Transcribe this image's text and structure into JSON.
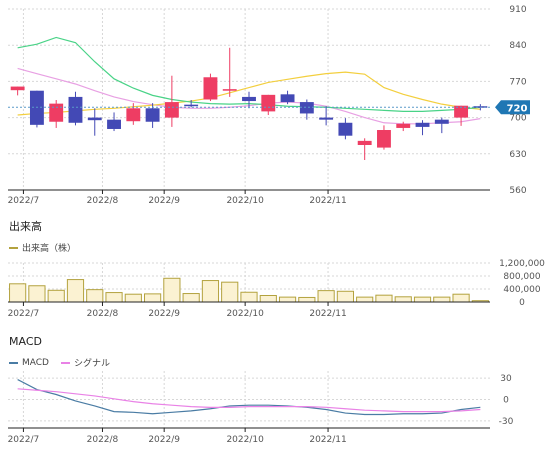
{
  "colors": {
    "up": "#ee3d63",
    "down": "#4349b5",
    "ma_short": "#e8a0e3",
    "ma_mid": "#f3cf3e",
    "ma_long": "#49d387",
    "ma_long_alt": "#26c283",
    "volume_fill": "#fbf2d2",
    "volume_stroke": "#b3a23e",
    "macd": "#4a7ca4",
    "signal": "#e982e6",
    "price_badge": "#1f77b4",
    "grid": "#d7d7d7",
    "axis": "#222222"
  },
  "sections": {
    "volume_title": "出来高",
    "volume_legend": "出来高（株）",
    "macd_title": "MACD",
    "macd_legend": "MACD",
    "signal_legend": "シグナル"
  },
  "chart_data": [
    {
      "type": "candlestick",
      "x_ticks": [
        "2022/7",
        "2022/8",
        "2022/9",
        "2022/10",
        "2022/11"
      ],
      "y_ticks": [
        910,
        840,
        770,
        700,
        630,
        560
      ],
      "ylim": [
        560,
        910
      ],
      "current_price": 720,
      "candles": [
        {
          "o": 753,
          "h": 760,
          "l": 743,
          "c": 760
        },
        {
          "o": 752,
          "h": 752,
          "l": 681,
          "c": 686
        },
        {
          "o": 692,
          "h": 734,
          "l": 680,
          "c": 727
        },
        {
          "o": 740,
          "h": 750,
          "l": 685,
          "c": 690
        },
        {
          "o": 700,
          "h": 718,
          "l": 665,
          "c": 695
        },
        {
          "o": 696,
          "h": 710,
          "l": 674,
          "c": 678
        },
        {
          "o": 693,
          "h": 728,
          "l": 686,
          "c": 718
        },
        {
          "o": 718,
          "h": 728,
          "l": 680,
          "c": 692
        },
        {
          "o": 700,
          "h": 781,
          "l": 682,
          "c": 730
        },
        {
          "o": 725,
          "h": 734,
          "l": 720,
          "c": 723
        },
        {
          "o": 735,
          "h": 785,
          "l": 732,
          "c": 778
        },
        {
          "o": 752,
          "h": 835,
          "l": 740,
          "c": 755
        },
        {
          "o": 740,
          "h": 750,
          "l": 718,
          "c": 732
        },
        {
          "o": 712,
          "h": 744,
          "l": 705,
          "c": 744
        },
        {
          "o": 745,
          "h": 752,
          "l": 726,
          "c": 730
        },
        {
          "o": 730,
          "h": 735,
          "l": 696,
          "c": 708
        },
        {
          "o": 700,
          "h": 722,
          "l": 685,
          "c": 696
        },
        {
          "o": 690,
          "h": 699,
          "l": 658,
          "c": 665
        },
        {
          "o": 647,
          "h": 660,
          "l": 618,
          "c": 655
        },
        {
          "o": 642,
          "h": 685,
          "l": 638,
          "c": 676
        },
        {
          "o": 680,
          "h": 692,
          "l": 674,
          "c": 688
        },
        {
          "o": 690,
          "h": 695,
          "l": 666,
          "c": 682
        },
        {
          "o": 696,
          "h": 700,
          "l": 670,
          "c": 688
        },
        {
          "o": 700,
          "h": 723,
          "l": 684,
          "c": 723
        },
        {
          "o": 722,
          "h": 726,
          "l": 714,
          "c": 720
        }
      ],
      "moving_averages": [
        {
          "values": [
            795,
            785,
            775,
            765,
            752,
            740,
            731,
            725,
            720,
            718,
            718,
            720,
            723,
            728,
            730,
            728,
            722,
            712,
            700,
            690,
            688,
            688,
            690,
            692,
            698
          ]
        },
        {
          "values": [
            705,
            708,
            710,
            713,
            716,
            718,
            721,
            724,
            728,
            732,
            738,
            748,
            758,
            768,
            774,
            780,
            785,
            788,
            784,
            758,
            745,
            735,
            726,
            720,
            716
          ]
        },
        {
          "values": [
            835,
            842,
            855,
            845,
            808,
            775,
            757,
            743,
            735,
            730,
            727,
            726,
            727,
            725,
            722,
            721,
            720,
            718,
            716,
            714,
            712,
            712,
            714,
            716,
            720
          ]
        }
      ]
    },
    {
      "type": "bar",
      "y_ticks": [
        "1,200,000",
        "800,000",
        "400,000",
        "0"
      ],
      "ylim": [
        0,
        1200000
      ],
      "values": [
        560000,
        500000,
        360000,
        690000,
        380000,
        290000,
        240000,
        250000,
        730000,
        260000,
        660000,
        610000,
        300000,
        200000,
        150000,
        140000,
        350000,
        330000,
        150000,
        210000,
        160000,
        150000,
        150000,
        240000,
        40000
      ]
    },
    {
      "type": "line",
      "x_ticks": [
        "2022/7",
        "2022/8",
        "2022/9",
        "2022/10",
        "2022/11"
      ],
      "y_ticks": [
        "30",
        "0",
        "-30"
      ],
      "ylim": [
        -40,
        40
      ],
      "series": [
        {
          "name": "MACD",
          "values": [
            28,
            14,
            7,
            -2,
            -9,
            -17,
            -18,
            -20,
            -18,
            -16,
            -13,
            -9,
            -8,
            -8,
            -9,
            -11,
            -14,
            -19,
            -21,
            -21,
            -20,
            -20,
            -19,
            -14,
            -11
          ]
        },
        {
          "name": "シグナル",
          "values": [
            15,
            13,
            11,
            8,
            5,
            1,
            -3,
            -6,
            -8,
            -10,
            -11,
            -11,
            -10,
            -10,
            -10,
            -10,
            -11,
            -13,
            -15,
            -16,
            -17,
            -17,
            -17,
            -16,
            -14
          ]
        }
      ]
    }
  ]
}
